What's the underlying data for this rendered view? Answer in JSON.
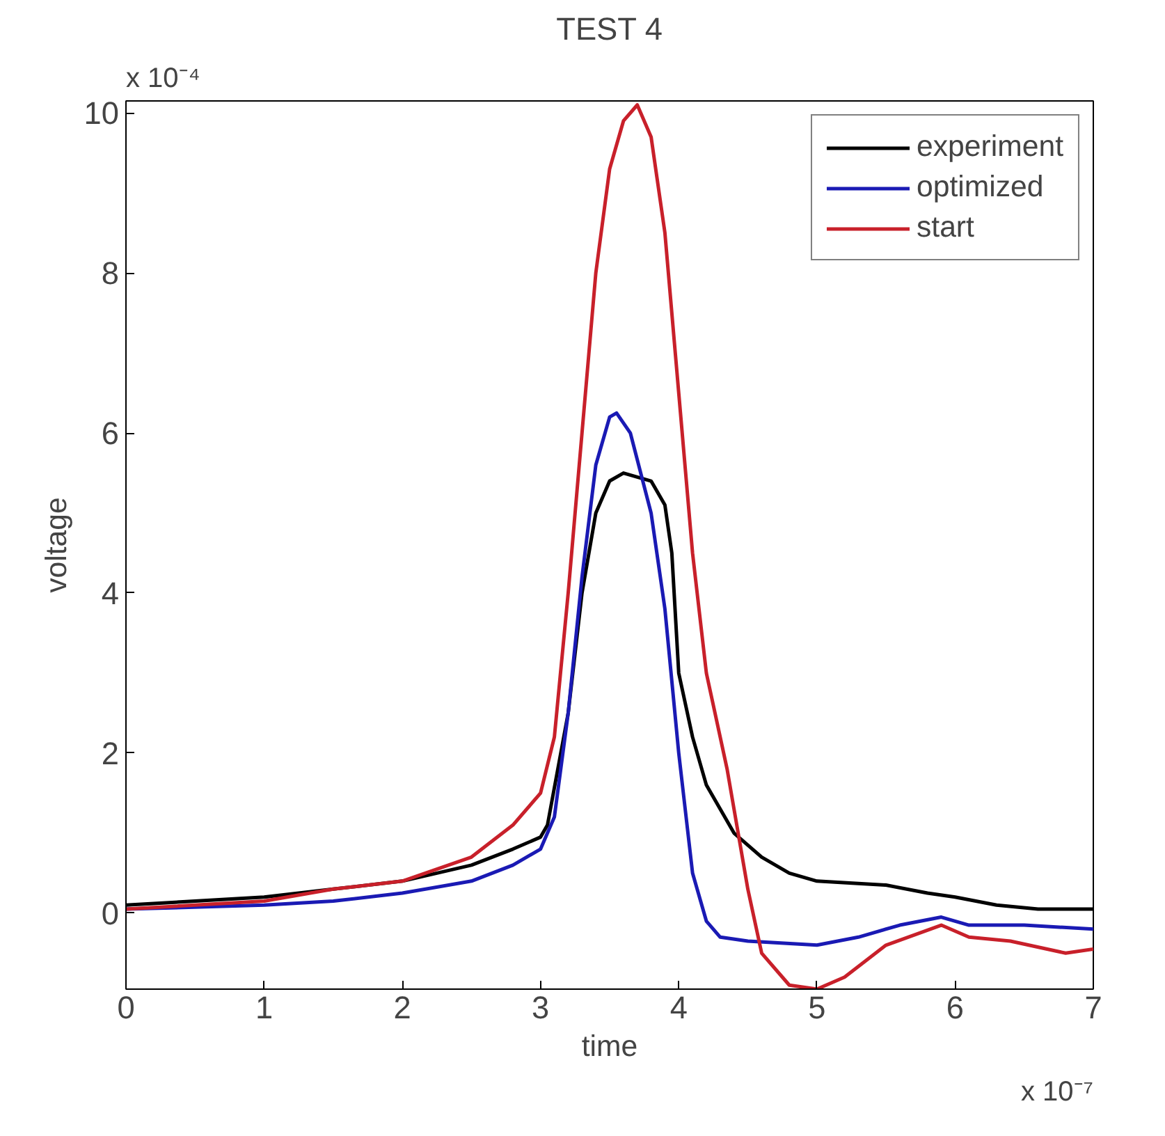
{
  "chart_data": {
    "type": "line",
    "title": "TEST 4",
    "xlabel": "time",
    "ylabel": "voltage",
    "annotations": [
      "x 10⁻⁴",
      "x 10⁻⁷"
    ],
    "xlim": [
      0,
      7
    ],
    "ylim": [
      -0.95,
      10.15
    ],
    "xticks": [
      0,
      1,
      2,
      3,
      4,
      5,
      6,
      7
    ],
    "yticks": [
      0,
      2,
      4,
      6,
      8,
      10
    ],
    "grid": false,
    "legend": "top right",
    "line_style": "solid",
    "marker": "none",
    "series": [
      {
        "name": "experiment",
        "color": "#000000",
        "x": [
          0,
          0.5,
          1,
          1.5,
          2,
          2.5,
          2.8,
          3.0,
          3.05,
          3.2,
          3.3,
          3.4,
          3.5,
          3.6,
          3.7,
          3.8,
          3.9,
          3.95,
          4.0,
          4.1,
          4.2,
          4.4,
          4.6,
          4.8,
          5.0,
          5.5,
          5.8,
          6.0,
          6.3,
          6.6,
          7
        ],
        "values": [
          0.1,
          0.15,
          0.2,
          0.3,
          0.4,
          0.6,
          0.8,
          0.95,
          1.1,
          2.5,
          4.0,
          5.0,
          5.4,
          5.5,
          5.45,
          5.4,
          5.1,
          4.5,
          3.0,
          2.2,
          1.6,
          1.0,
          0.7,
          0.5,
          0.4,
          0.35,
          0.25,
          0.2,
          0.1,
          0.05,
          0.05
        ]
      },
      {
        "name": "optimized",
        "color": "#1a1ab4",
        "x": [
          0,
          1,
          1.5,
          2,
          2.5,
          2.8,
          3.0,
          3.1,
          3.2,
          3.3,
          3.4,
          3.5,
          3.55,
          3.65,
          3.8,
          3.9,
          4.0,
          4.1,
          4.2,
          4.3,
          4.5,
          5.0,
          5.3,
          5.6,
          5.9,
          6.1,
          6.5,
          7
        ],
        "values": [
          0.05,
          0.1,
          0.15,
          0.25,
          0.4,
          0.6,
          0.8,
          1.2,
          2.5,
          4.2,
          5.6,
          6.2,
          6.25,
          6.0,
          5.0,
          3.8,
          2.0,
          0.5,
          -0.1,
          -0.3,
          -0.35,
          -0.4,
          -0.3,
          -0.15,
          -0.05,
          -0.15,
          -0.15,
          -0.2
        ]
      },
      {
        "name": "start",
        "color": "#c8202a",
        "x": [
          0,
          1,
          1.5,
          2,
          2.5,
          2.8,
          3.0,
          3.1,
          3.2,
          3.3,
          3.4,
          3.5,
          3.6,
          3.7,
          3.8,
          3.9,
          4.0,
          4.1,
          4.2,
          4.35,
          4.5,
          4.6,
          4.8,
          5.0,
          5.2,
          5.5,
          5.9,
          6.1,
          6.4,
          6.8,
          7
        ],
        "values": [
          0.05,
          0.15,
          0.3,
          0.4,
          0.7,
          1.1,
          1.5,
          2.2,
          4.0,
          6.0,
          8.0,
          9.3,
          9.9,
          10.1,
          9.7,
          8.5,
          6.5,
          4.5,
          3.0,
          1.8,
          0.3,
          -0.5,
          -0.9,
          -0.95,
          -0.8,
          -0.4,
          -0.15,
          -0.3,
          -0.35,
          -0.5,
          -0.45
        ]
      }
    ]
  }
}
